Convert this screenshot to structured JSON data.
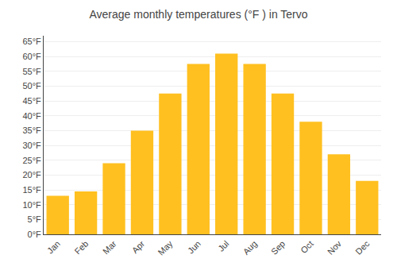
{
  "chart_data": {
    "type": "bar",
    "title": "Average monthly temperatures (°F ) in Tervo",
    "categories": [
      "Jan",
      "Feb",
      "Mar",
      "Apr",
      "May",
      "Jun",
      "Jul",
      "Aug",
      "Sep",
      "Oct",
      "Nov",
      "Dec"
    ],
    "values": [
      13,
      14.5,
      24,
      35,
      47.5,
      57.5,
      61,
      57.5,
      47.5,
      38,
      27,
      18
    ],
    "color": "#FFC020",
    "ylim": [
      0,
      67
    ],
    "yticks": [
      {
        "value": 0,
        "label": "0°F"
      },
      {
        "value": 5,
        "label": "5°F"
      },
      {
        "value": 10,
        "label": "10°F"
      },
      {
        "value": 15,
        "label": "15°F"
      },
      {
        "value": 20,
        "label": "20°F"
      },
      {
        "value": 25,
        "label": "25°F"
      },
      {
        "value": 30,
        "label": "30°F"
      },
      {
        "value": 35,
        "label": "35°F"
      },
      {
        "value": 40,
        "label": "40°F"
      },
      {
        "value": 45,
        "label": "45°F"
      },
      {
        "value": 50,
        "label": "50°F"
      },
      {
        "value": 55,
        "label": "55°F"
      },
      {
        "value": 60,
        "label": "60°F"
      },
      {
        "value": 65,
        "label": "65°F"
      }
    ],
    "grid": true
  }
}
